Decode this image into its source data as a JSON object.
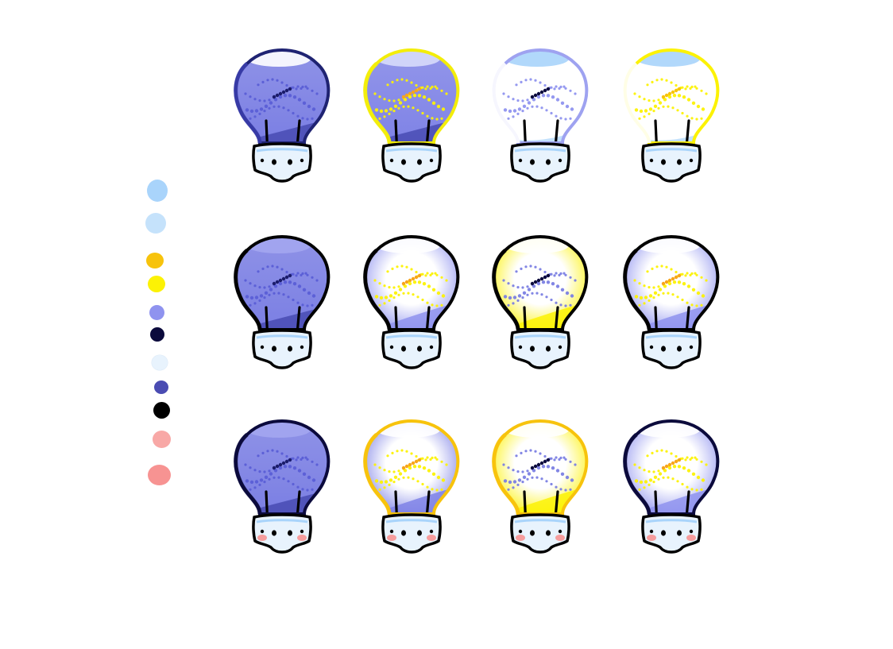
{
  "palette": [
    {
      "name": "light-sky-blue",
      "color": "#a9d4fb"
    },
    {
      "name": "pale-blue",
      "color": "#c5e2fb"
    },
    {
      "name": "amber",
      "color": "#f7c30c"
    },
    {
      "name": "yellow",
      "color": "#fcf205"
    },
    {
      "name": "periwinkle",
      "color": "#8f93ef"
    },
    {
      "name": "navy",
      "color": "#0b0a3c"
    },
    {
      "name": "ice-blue",
      "color": "#e8f3fd"
    },
    {
      "name": "indigo",
      "color": "#4a4cb2"
    },
    {
      "name": "black",
      "color": "#000000"
    },
    {
      "name": "light-pink",
      "color": "#f8a8a6"
    },
    {
      "name": "salmon",
      "color": "#f79392"
    }
  ],
  "bulbs": [
    {
      "fill": "solid",
      "tint": "#7b7fe3",
      "outline": "#1f2372",
      "rim": "#3a3dab",
      "dots": "#5a5ed6",
      "core": "#1b1c6b",
      "highlight": "#ffffff",
      "blush": false
    },
    {
      "fill": "solid",
      "tint": "#7f83e6",
      "outline": "#f3ed0a",
      "rim": "#f3ed0a",
      "dots": "#fcf205",
      "core": "#f7a51c",
      "highlight": "#d7dcfb",
      "blush": false
    },
    {
      "fill": "white",
      "tint": "#9ea2f0",
      "outline": "#9ea2f0",
      "rim": "#ffffff",
      "dots": "#8f93ef",
      "core": "#0b0a3c",
      "highlight": "#a9d4fb",
      "blush": false
    },
    {
      "fill": "white",
      "tint": "#fcf205",
      "outline": "#fcf205",
      "rim": "#ffffff",
      "dots": "#fcf205",
      "core": "#f7c30c",
      "highlight": "#a9d4fb",
      "blush": false
    },
    {
      "fill": "solid",
      "tint": "#7b7fe3",
      "outline": "#000000",
      "rim": "#000000",
      "dots": "#5a5ed6",
      "core": "#1b1c6b",
      "highlight": "#a3a6ef",
      "blush": false
    },
    {
      "fill": "glow-blue",
      "tint": "#8f93ef",
      "outline": "#000000",
      "rim": "#000000",
      "dots": "#fcf205",
      "core": "#f7a51c",
      "highlight": "#ffffff",
      "blush": false
    },
    {
      "fill": "glow-yellow",
      "tint": "#fcf205",
      "outline": "#000000",
      "rim": "#000000",
      "dots": "#7b7fe3",
      "core": "#0b0a3c",
      "highlight": "#ffffff",
      "blush": false
    },
    {
      "fill": "glow-blue",
      "tint": "#8f93ef",
      "outline": "#000000",
      "rim": "#000000",
      "dots": "#fcf205",
      "core": "#f7a51c",
      "highlight": "#ffffff",
      "blush": false
    },
    {
      "fill": "solid",
      "tint": "#7b7fe3",
      "outline": "#0b0a3c",
      "rim": "#0b0a3c",
      "dots": "#5a5ed6",
      "core": "#1b1c6b",
      "highlight": "#a3a6ef",
      "blush": true
    },
    {
      "fill": "glow-blue",
      "tint": "#7f83e6",
      "outline": "#f7c30c",
      "rim": "#f7c30c",
      "dots": "#fcf205",
      "core": "#f7a51c",
      "highlight": "#ffffff",
      "blush": true
    },
    {
      "fill": "glow-yellow",
      "tint": "#fcf205",
      "outline": "#f7c30c",
      "rim": "#f7c30c",
      "dots": "#7b7fe3",
      "core": "#0b0a3c",
      "highlight": "#ffffff",
      "blush": true
    },
    {
      "fill": "glow-blue",
      "tint": "#8f93ef",
      "outline": "#0b0a3c",
      "rim": "#0b0a3c",
      "dots": "#fcf205",
      "core": "#f7a51c",
      "highlight": "#ffffff",
      "blush": true
    }
  ]
}
